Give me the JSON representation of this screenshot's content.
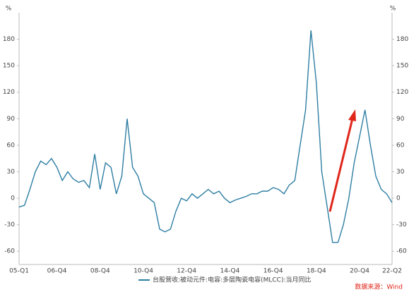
{
  "chart_data": {
    "type": "line",
    "y_label": "%",
    "y2_label": "%",
    "categories": [
      "05-Q1",
      null,
      null,
      null,
      null,
      null,
      null,
      "06-Q4",
      null,
      null,
      null,
      null,
      null,
      null,
      null,
      "08-Q4",
      null,
      null,
      null,
      null,
      null,
      null,
      null,
      "10-Q4",
      null,
      null,
      null,
      null,
      null,
      null,
      null,
      "12-Q4",
      null,
      null,
      null,
      null,
      null,
      null,
      null,
      "14-Q4",
      null,
      null,
      null,
      null,
      null,
      null,
      null,
      "16-Q4",
      null,
      null,
      null,
      null,
      null,
      null,
      null,
      "18-Q4",
      null,
      null,
      null,
      null,
      null,
      null,
      null,
      "20-Q4",
      null,
      null,
      null,
      null,
      null,
      "22-Q2"
    ],
    "series": [
      {
        "name": "台股营收:被动元件:电容:多层陶瓷电容(MLCC):当月同比",
        "color": "#2e7ea3",
        "axis": "y",
        "values": [
          -10,
          -8,
          10,
          30,
          42,
          38,
          45,
          35,
          20,
          30,
          22,
          18,
          20,
          12,
          50,
          10,
          40,
          35,
          5,
          25,
          90,
          35,
          25,
          5,
          0,
          -5,
          -35,
          -38,
          -35,
          -15,
          0,
          -3,
          5,
          0,
          5,
          10,
          5,
          8,
          0,
          -5,
          -2,
          0,
          2,
          5,
          5,
          8,
          8,
          12,
          10,
          5,
          15,
          20,
          60,
          100,
          190,
          130,
          30,
          -10,
          -50,
          -50,
          -30,
          0,
          40,
          70,
          100,
          60,
          25,
          10,
          5,
          -5
        ]
      }
    ],
    "ylim": [
      -75,
      210
    ],
    "yticks": [
      -60,
      -30,
      0,
      30,
      60,
      90,
      120,
      150,
      180
    ],
    "y2lim": [
      -75,
      210
    ],
    "y2ticks": [
      -60,
      -30,
      0,
      30,
      60,
      90,
      120,
      150,
      180
    ],
    "source": "数据来源：Wind"
  }
}
